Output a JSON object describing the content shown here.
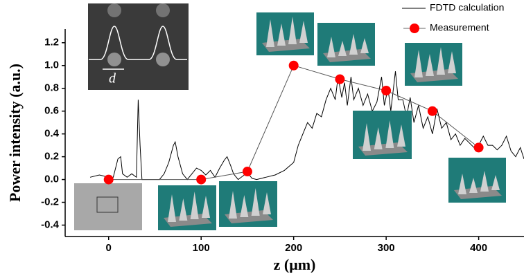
{
  "chart_data": {
    "type": "line",
    "x_label": "z (μm)",
    "y_label": "Power intensity (a.u.)",
    "xlim": [
      -47,
      449
    ],
    "ylim": [
      -0.5,
      1.32
    ],
    "xticks": [
      0,
      100,
      200,
      300,
      400
    ],
    "yticks": [
      -0.4,
      -0.2,
      {
        "value": 0,
        "label": "0.0"
      },
      0.2,
      0.4,
      0.6,
      0.8,
      {
        "value": 1,
        "label": "1.0"
      },
      1.2
    ],
    "annotations": [
      "d"
    ],
    "series": [
      {
        "name": "FDTD calculation",
        "color": "#000000",
        "marker": false,
        "x": [
          -20,
          -10,
          -5,
          0,
          5,
          10,
          13,
          15,
          20,
          25,
          30,
          32,
          34,
          36,
          45,
          55,
          60,
          65,
          70,
          72,
          75,
          80,
          85,
          90,
          95,
          100,
          105,
          110,
          115,
          120,
          125,
          128,
          132,
          135,
          140,
          145,
          150,
          155,
          160,
          170,
          180,
          190,
          200,
          205,
          210,
          215,
          220,
          225,
          230,
          235,
          240,
          245,
          248,
          252,
          255,
          258,
          262,
          265,
          270,
          275,
          280,
          285,
          290,
          295,
          298,
          302,
          305,
          310,
          313,
          318,
          322,
          326,
          330,
          335,
          340,
          345,
          350,
          355,
          360,
          365,
          370,
          375,
          380,
          385,
          390,
          395,
          400,
          405,
          410,
          415,
          420,
          425,
          430,
          435,
          440,
          445,
          449
        ],
        "values": [
          0.02,
          0.04,
          0.03,
          0.01,
          0.02,
          0.18,
          0.2,
          0.05,
          0.02,
          0.05,
          0.02,
          0.7,
          0.3,
          0.0,
          0.0,
          0.0,
          0.05,
          0.15,
          0.3,
          0.33,
          0.2,
          0.05,
          0.0,
          0.05,
          0.1,
          0.08,
          0.04,
          0.08,
          0.02,
          0.1,
          0.17,
          0.2,
          0.12,
          0.05,
          0.0,
          0.03,
          0.06,
          0.01,
          0.0,
          0.02,
          0.04,
          0.08,
          0.15,
          0.3,
          0.4,
          0.5,
          0.45,
          0.58,
          0.55,
          0.7,
          0.8,
          0.7,
          0.9,
          0.72,
          0.85,
          0.65,
          0.9,
          0.7,
          0.8,
          0.65,
          0.75,
          0.6,
          0.68,
          0.9,
          0.65,
          0.8,
          0.6,
          0.95,
          0.7,
          0.7,
          0.55,
          0.72,
          0.5,
          0.65,
          0.45,
          0.55,
          0.4,
          0.62,
          0.45,
          0.5,
          0.35,
          0.4,
          0.3,
          0.36,
          0.32,
          0.28,
          0.3,
          0.38,
          0.3,
          0.3,
          0.26,
          0.3,
          0.38,
          0.25,
          0.2,
          0.28,
          0.18
        ]
      },
      {
        "name": "Measurement",
        "color": "#ff0000",
        "marker": true,
        "x": [
          0,
          100,
          150,
          200,
          250,
          300,
          350,
          400
        ],
        "values": [
          0.0,
          0.0,
          0.07,
          1.0,
          0.88,
          0.78,
          0.6,
          0.28
        ]
      }
    ]
  }
}
